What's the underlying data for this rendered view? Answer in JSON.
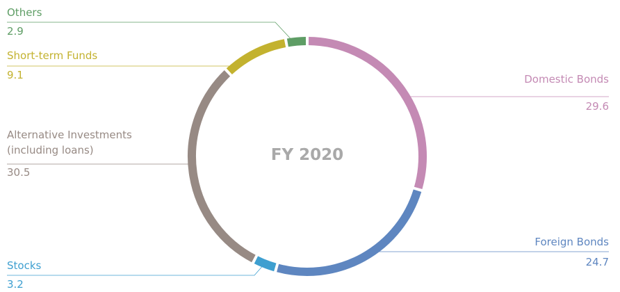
{
  "chart_data": {
    "type": "donut",
    "center_label": "FY 2020",
    "categories": [
      "Domestic Bonds",
      "Foreign Bonds",
      "Stocks",
      "Alternative Investments (including loans)",
      "Short-term Funds",
      "Others"
    ],
    "values": [
      29.6,
      24.7,
      3.2,
      30.5,
      9.1,
      2.9
    ],
    "colors": [
      "#c48ab4",
      "#5e86c0",
      "#3e9fd0",
      "#978a84",
      "#c3b22f",
      "#5e9d65"
    ]
  }
}
